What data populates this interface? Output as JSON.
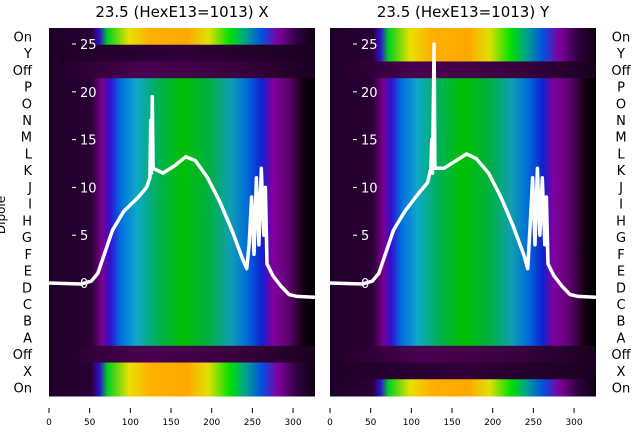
{
  "chart_data": [
    {
      "type": "heatmap",
      "title": "23.5 (HexE13=1013) X",
      "ylabel": "Dipole",
      "xlim": [
        0,
        327
      ],
      "xticks": [
        0,
        50,
        100,
        150,
        200,
        250,
        300
      ],
      "row_labels": [
        "On",
        "Y",
        "Off",
        "P",
        "O",
        "N",
        "M",
        "L",
        "K",
        "J",
        "I",
        "H",
        "G",
        "F",
        "E",
        "D",
        "C",
        "B",
        "A",
        "Off",
        "X",
        "On"
      ],
      "row_types": [
        "on",
        "dark",
        "off",
        "main",
        "main",
        "main",
        "main",
        "main",
        "main",
        "main",
        "main",
        "main",
        "main",
        "main",
        "main",
        "main",
        "main",
        "main",
        "main",
        "off",
        "on",
        "on"
      ],
      "line_yticks": [
        0,
        5,
        10,
        15,
        20,
        25
      ],
      "line_ylim": [
        -2,
        26
      ],
      "profile": [
        [
          0,
          0
        ],
        [
          40,
          -0.1
        ],
        [
          52,
          0.2
        ],
        [
          60,
          1
        ],
        [
          68,
          3
        ],
        [
          78,
          5.5
        ],
        [
          92,
          7.5
        ],
        [
          110,
          9
        ],
        [
          120,
          10
        ],
        [
          124,
          11
        ],
        [
          125,
          17
        ],
        [
          126,
          11.5
        ],
        [
          127,
          19.5
        ],
        [
          128,
          12
        ],
        [
          140,
          11.5
        ],
        [
          155,
          12.3
        ],
        [
          168,
          13.2
        ],
        [
          180,
          12.8
        ],
        [
          195,
          11
        ],
        [
          210,
          8.5
        ],
        [
          225,
          5.5
        ],
        [
          238,
          2.5
        ],
        [
          243,
          1.5
        ],
        [
          246,
          4
        ],
        [
          249,
          9
        ],
        [
          252,
          3
        ],
        [
          255,
          11
        ],
        [
          258,
          4
        ],
        [
          261,
          12
        ],
        [
          264,
          5
        ],
        [
          266,
          10
        ],
        [
          268,
          2
        ],
        [
          275,
          0.8
        ],
        [
          285,
          -0.3
        ],
        [
          295,
          -1.2
        ],
        [
          305,
          -1.4
        ],
        [
          327,
          -1.5
        ]
      ]
    },
    {
      "type": "heatmap",
      "title": "23.5 (HexE13=1013) Y",
      "ylabel": "Dipole",
      "xlim": [
        0,
        327
      ],
      "xticks": [
        0,
        50,
        100,
        150,
        200,
        250,
        300
      ],
      "row_labels": [
        "On",
        "Y",
        "Off",
        "P",
        "O",
        "N",
        "M",
        "L",
        "K",
        "J",
        "I",
        "H",
        "G",
        "F",
        "E",
        "D",
        "C",
        "B",
        "A",
        "Off",
        "X",
        "On"
      ],
      "row_types": [
        "on",
        "on",
        "off",
        "main",
        "main",
        "main",
        "main",
        "main",
        "main",
        "main",
        "main",
        "main",
        "main",
        "main",
        "main",
        "main",
        "main",
        "main",
        "main",
        "off",
        "dark",
        "on"
      ],
      "line_yticks": [
        0,
        5,
        10,
        15,
        20,
        25
      ],
      "line_ylim": [
        -2,
        26
      ],
      "profile": [
        [
          0,
          0
        ],
        [
          40,
          -0.1
        ],
        [
          52,
          0.2
        ],
        [
          60,
          1
        ],
        [
          68,
          3
        ],
        [
          78,
          5.5
        ],
        [
          92,
          7.5
        ],
        [
          110,
          9.5
        ],
        [
          120,
          10.5
        ],
        [
          124,
          12
        ],
        [
          125,
          15
        ],
        [
          126,
          11.5
        ],
        [
          128,
          25
        ],
        [
          129,
          12
        ],
        [
          140,
          12
        ],
        [
          155,
          12.8
        ],
        [
          168,
          13.5
        ],
        [
          180,
          13
        ],
        [
          195,
          11.5
        ],
        [
          210,
          9
        ],
        [
          225,
          6
        ],
        [
          238,
          3
        ],
        [
          243,
          1.5
        ],
        [
          246,
          6
        ],
        [
          249,
          11
        ],
        [
          252,
          4
        ],
        [
          255,
          12
        ],
        [
          258,
          5
        ],
        [
          261,
          11
        ],
        [
          264,
          4
        ],
        [
          266,
          9
        ],
        [
          268,
          2
        ],
        [
          275,
          0.8
        ],
        [
          285,
          -0.3
        ],
        [
          295,
          -1.2
        ],
        [
          305,
          -1.4
        ],
        [
          327,
          -1.5
        ]
      ]
    }
  ]
}
